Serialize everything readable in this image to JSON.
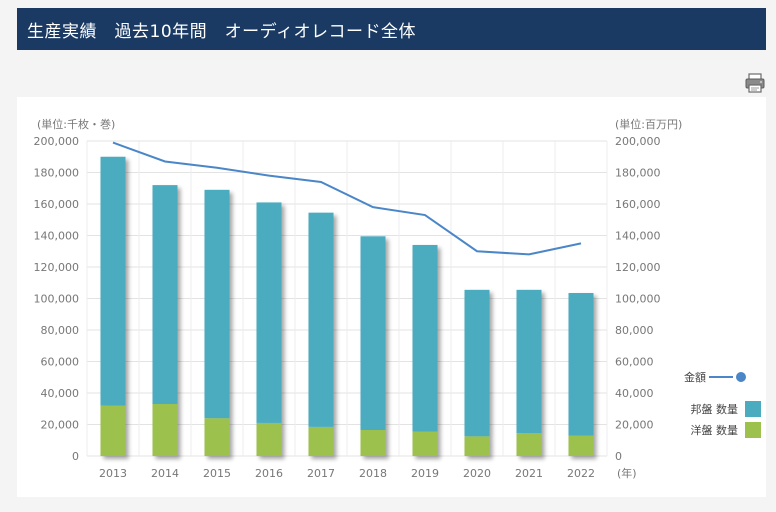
{
  "header": {
    "title": "生産実績　過去10年間　オーディオレコード全体"
  },
  "toolbar": {
    "print_icon": "printer-icon"
  },
  "chart_data": {
    "type": "bar",
    "stacked": true,
    "categories": [
      "2013",
      "2014",
      "2015",
      "2016",
      "2017",
      "2018",
      "2019",
      "2020",
      "2021",
      "2022"
    ],
    "xlabel": "(年)",
    "left_axis": {
      "label": "(単位:千枚・巻)",
      "min": 0,
      "max": 200000,
      "step": 20000,
      "ticks": [
        "0",
        "20,000",
        "40,000",
        "60,000",
        "80,000",
        "100,000",
        "120,000",
        "140,000",
        "160,000",
        "180,000",
        "200,000"
      ]
    },
    "right_axis": {
      "label": "(単位:百万円)",
      "min": 0,
      "max": 200000,
      "step": 20000,
      "ticks": [
        "0",
        "20,000",
        "40,000",
        "60,000",
        "80,000",
        "100,000",
        "120,000",
        "140,000",
        "160,000",
        "180,000",
        "200,000"
      ]
    },
    "grid": true,
    "legend_position": "right",
    "series": [
      {
        "name": "洋盤 数量",
        "kind": "bar",
        "color": "#9dc14d",
        "values": [
          32000,
          33000,
          24000,
          21000,
          18500,
          16500,
          15500,
          12500,
          14500,
          13000
        ]
      },
      {
        "name": "邦盤 数量",
        "kind": "bar",
        "color": "#4bacc0",
        "values": [
          158000,
          139000,
          145000,
          140000,
          136000,
          123000,
          118500,
          93000,
          91000,
          90500
        ]
      },
      {
        "name": "金額",
        "kind": "line",
        "axis": "right",
        "color": "#4a86c8",
        "values": [
          199000,
          187000,
          183000,
          178000,
          174000,
          158000,
          153000,
          130000,
          128000,
          135000
        ]
      }
    ]
  }
}
